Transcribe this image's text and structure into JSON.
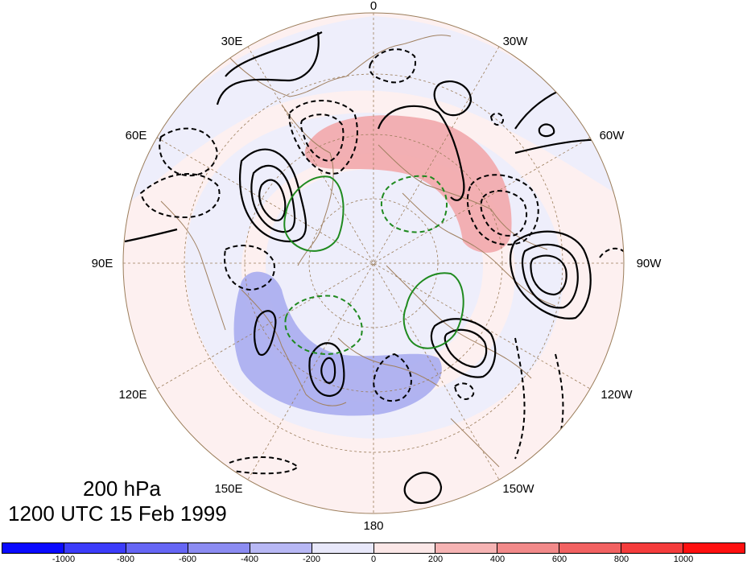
{
  "caption": {
    "level": "200 hPa",
    "time": "1200 UTC 15 Feb 1999"
  },
  "longitude_labels": [
    "0",
    "30W",
    "60W",
    "90W",
    "120W",
    "150W",
    "180",
    "150E",
    "120E",
    "90E",
    "60E",
    "30E"
  ],
  "colorbar": {
    "tick_labels": [
      "-1000",
      "-800",
      "-600",
      "-400",
      "-200",
      "0",
      "200",
      "400",
      "600",
      "800",
      "1000"
    ],
    "colors": [
      "#0a0aff",
      "#3c3cfa",
      "#6666f5",
      "#8c8cf2",
      "#b8b8f5",
      "#e8e8fa",
      "#fbe7e7",
      "#f6b4b4",
      "#f28a8a",
      "#f26262",
      "#f53c3c",
      "#ff1010"
    ]
  },
  "colors": {
    "positive_shading": "#f2a7ab",
    "negative_shading": "#a9acf0",
    "contour": "#000000",
    "green_contour": "#1f8a1f",
    "coastline": "#a08060"
  }
}
